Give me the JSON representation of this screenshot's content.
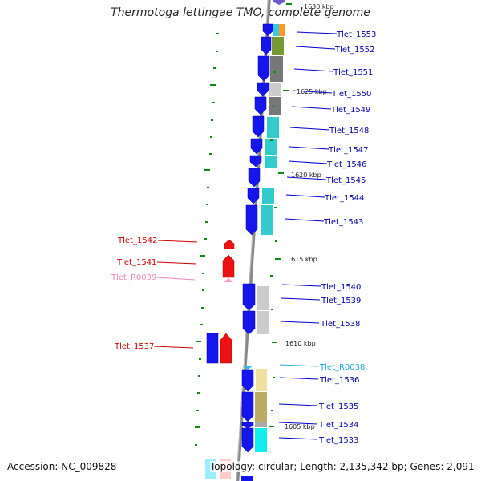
{
  "title": "Thermotoga lettingae TMO, complete genome",
  "accession": "Accession: NC_009828",
  "summary": "Topology: circular; Length: 2,135,342 bp; Genes: 2,091",
  "colors": {
    "backbone": "#777777",
    "forward_gene": "#1515ee",
    "reverse_gene": "#ee1111",
    "trna_forward": "#33bbee",
    "trna_reverse": "#ff99cc",
    "label_forward": "#0000aa",
    "label_reverse": "#cc0000",
    "label_trna_forward": "#22aacc",
    "label_trna_reverse": "#ee88bb",
    "tick_mark": "#118811"
  },
  "ticks": [
    {
      "label": "1630 kbp"
    },
    {
      "label": "1625 kbp"
    },
    {
      "label": "1620 kbp"
    },
    {
      "label": "1615 kbp"
    },
    {
      "label": "1610 kbp"
    },
    {
      "label": "1605 kbp"
    }
  ],
  "genes": [
    {
      "name": "Tlet_1553",
      "strand": "+",
      "type": "gene"
    },
    {
      "name": "Tlet_1552",
      "strand": "+",
      "type": "gene"
    },
    {
      "name": "Tlet_1551",
      "strand": "+",
      "type": "gene"
    },
    {
      "name": "Tlet_1550",
      "strand": "+",
      "type": "gene"
    },
    {
      "name": "Tlet_1549",
      "strand": "+",
      "type": "gene"
    },
    {
      "name": "Tlet_1548",
      "strand": "+",
      "type": "gene"
    },
    {
      "name": "Tlet_1547",
      "strand": "+",
      "type": "gene"
    },
    {
      "name": "Tlet_1546",
      "strand": "+",
      "type": "gene"
    },
    {
      "name": "Tlet_1545",
      "strand": "+",
      "type": "gene"
    },
    {
      "name": "Tlet_1544",
      "strand": "+",
      "type": "gene"
    },
    {
      "name": "Tlet_1543",
      "strand": "+",
      "type": "gene"
    },
    {
      "name": "Tlet_1542",
      "strand": "-",
      "type": "gene"
    },
    {
      "name": "Tlet_1541",
      "strand": "-",
      "type": "gene"
    },
    {
      "name": "Tlet_R0039",
      "strand": "-",
      "type": "trna"
    },
    {
      "name": "Tlet_1540",
      "strand": "+",
      "type": "gene"
    },
    {
      "name": "Tlet_1539",
      "strand": "+",
      "type": "gene"
    },
    {
      "name": "Tlet_1538",
      "strand": "+",
      "type": "gene"
    },
    {
      "name": "Tlet_1537",
      "strand": "-",
      "type": "gene"
    },
    {
      "name": "Tlet_R0038",
      "strand": "+",
      "type": "trna"
    },
    {
      "name": "Tlet_1536",
      "strand": "+",
      "type": "gene"
    },
    {
      "name": "Tlet_1535",
      "strand": "+",
      "type": "gene"
    },
    {
      "name": "Tlet_1534",
      "strand": "+",
      "type": "gene"
    },
    {
      "name": "Tlet_1533",
      "strand": "+",
      "type": "gene"
    }
  ]
}
